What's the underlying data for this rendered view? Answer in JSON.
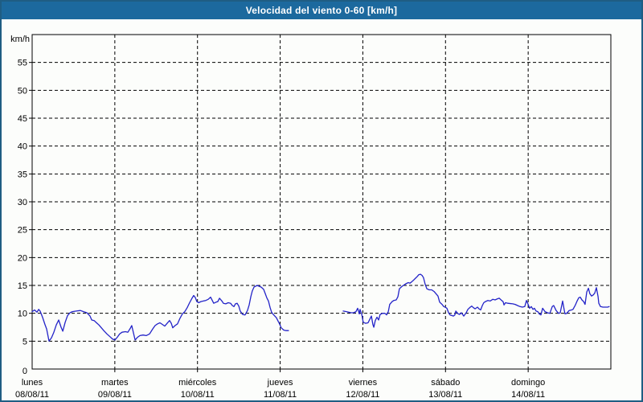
{
  "title": "Velocidad del viento 0-60 [km/h]",
  "colors": {
    "title_bar_bg": "#1c699e",
    "title_text": "#ffffff",
    "frame_border": "#1f5d83",
    "background": "#fcfdfb",
    "plot_border": "#000000",
    "grid": "#000000",
    "line": "#2323c8"
  },
  "chart_data": {
    "type": "line",
    "title": "Velocidad del viento 0-60 [km/h]",
    "ylabel": "km/h",
    "xlabel": "",
    "ylim": [
      0,
      60
    ],
    "yticks": [
      0,
      5,
      10,
      15,
      20,
      25,
      30,
      35,
      40,
      45,
      50,
      55
    ],
    "x_unit": "hours since lunes 00:00",
    "xlim": [
      0,
      168
    ],
    "xtick_step_hours": 24,
    "grid": "dashed",
    "legend_position": "none",
    "x_categories": [
      {
        "day": "lunes",
        "date": "08/08/11"
      },
      {
        "day": "martes",
        "date": "09/08/11"
      },
      {
        "day": "miércoles",
        "date": "10/08/11"
      },
      {
        "day": "jueves",
        "date": "11/08/11"
      },
      {
        "day": "viernes",
        "date": "12/08/11"
      },
      {
        "day": "sábado",
        "date": "13/08/11"
      },
      {
        "day": "domingo",
        "date": "14/08/11"
      }
    ],
    "series": [
      {
        "name": "velocidad del viento",
        "color": "#2323c8",
        "segments": [
          [
            [
              0.0,
              10.3
            ],
            [
              0.7,
              10.6
            ],
            [
              1.4,
              10.2
            ],
            [
              1.9,
              10.7
            ],
            [
              2.3,
              10.4
            ],
            [
              3.0,
              9.3
            ],
            [
              3.7,
              8.0
            ],
            [
              4.2,
              7.2
            ],
            [
              4.9,
              5.0
            ],
            [
              5.6,
              5.6
            ],
            [
              6.3,
              6.6
            ],
            [
              7.0,
              7.9
            ],
            [
              7.7,
              8.8
            ],
            [
              8.4,
              7.5
            ],
            [
              8.9,
              6.8
            ],
            [
              9.6,
              8.4
            ],
            [
              10.3,
              9.6
            ],
            [
              11.0,
              10.1
            ],
            [
              11.7,
              10.3
            ],
            [
              12.8,
              10.4
            ],
            [
              14.0,
              10.5
            ],
            [
              14.9,
              10.3
            ],
            [
              15.9,
              10.1
            ],
            [
              16.8,
              9.5
            ],
            [
              17.3,
              8.8
            ],
            [
              18.0,
              8.7
            ],
            [
              18.7,
              8.3
            ],
            [
              19.4,
              7.9
            ],
            [
              20.1,
              7.4
            ],
            [
              20.8,
              6.9
            ],
            [
              21.7,
              6.3
            ],
            [
              22.6,
              5.8
            ],
            [
              23.3,
              5.4
            ],
            [
              24.0,
              5.2
            ],
            [
              24.7,
              5.7
            ],
            [
              25.4,
              6.3
            ],
            [
              26.1,
              6.6
            ],
            [
              27.1,
              6.7
            ],
            [
              27.8,
              6.6
            ],
            [
              28.5,
              7.3
            ],
            [
              28.9,
              7.8
            ],
            [
              29.4,
              6.5
            ],
            [
              29.9,
              5.2
            ],
            [
              30.6,
              5.7
            ],
            [
              31.3,
              6.0
            ],
            [
              32.2,
              6.1
            ],
            [
              33.1,
              6.0
            ],
            [
              34.1,
              6.3
            ],
            [
              35.0,
              7.2
            ],
            [
              35.7,
              7.8
            ],
            [
              36.4,
              8.1
            ],
            [
              37.1,
              8.3
            ],
            [
              37.8,
              8.0
            ],
            [
              38.5,
              7.7
            ],
            [
              39.2,
              8.2
            ],
            [
              39.9,
              8.7
            ],
            [
              40.4,
              8.2
            ],
            [
              40.8,
              7.4
            ],
            [
              41.5,
              7.8
            ],
            [
              42.2,
              8.1
            ],
            [
              42.9,
              9.1
            ],
            [
              43.6,
              9.9
            ],
            [
              44.3,
              10.3
            ],
            [
              45.0,
              11.0
            ],
            [
              45.7,
              11.9
            ],
            [
              46.4,
              12.7
            ],
            [
              46.9,
              13.2
            ],
            [
              47.4,
              12.8
            ],
            [
              47.8,
              12.1
            ],
            [
              48.3,
              11.9
            ],
            [
              49.0,
              12.1
            ],
            [
              49.7,
              12.2
            ],
            [
              50.4,
              12.3
            ],
            [
              51.1,
              12.5
            ],
            [
              51.8,
              12.9
            ],
            [
              52.3,
              12.3
            ],
            [
              52.7,
              11.8
            ],
            [
              53.4,
              12.0
            ],
            [
              53.9,
              12.1
            ],
            [
              54.4,
              12.7
            ],
            [
              55.1,
              12.2
            ],
            [
              55.5,
              11.8
            ],
            [
              56.2,
              11.7
            ],
            [
              56.9,
              11.9
            ],
            [
              57.6,
              11.8
            ],
            [
              58.1,
              11.4
            ],
            [
              58.6,
              11.2
            ],
            [
              59.0,
              11.7
            ],
            [
              59.5,
              11.8
            ],
            [
              60.0,
              11.3
            ],
            [
              60.4,
              10.4
            ],
            [
              61.1,
              9.8
            ],
            [
              61.8,
              9.7
            ],
            [
              62.5,
              10.5
            ],
            [
              63.0,
              11.5
            ],
            [
              63.5,
              13.0
            ],
            [
              63.9,
              14.0
            ],
            [
              64.4,
              14.7
            ],
            [
              65.3,
              15.0
            ],
            [
              66.5,
              14.7
            ],
            [
              67.2,
              14.3
            ],
            [
              67.7,
              13.5
            ],
            [
              68.1,
              12.8
            ],
            [
              68.6,
              12.2
            ],
            [
              69.1,
              11.0
            ],
            [
              69.5,
              10.2
            ],
            [
              70.0,
              9.8
            ],
            [
              70.9,
              9.2
            ],
            [
              71.4,
              8.6
            ],
            [
              71.9,
              8.0
            ],
            [
              72.3,
              7.4
            ],
            [
              73.0,
              7.0
            ],
            [
              73.7,
              6.9
            ],
            [
              74.4,
              6.9
            ]
          ],
          [
            [
              90.3,
              10.4
            ],
            [
              91.2,
              10.3
            ],
            [
              92.6,
              10.1
            ],
            [
              93.3,
              10.1
            ],
            [
              94.0,
              10.3
            ],
            [
              94.5,
              10.9
            ],
            [
              95.0,
              9.9
            ],
            [
              95.2,
              10.7
            ],
            [
              95.7,
              9.8
            ],
            [
              96.1,
              8.4
            ],
            [
              96.8,
              8.2
            ],
            [
              97.5,
              8.3
            ],
            [
              98.0,
              8.9
            ],
            [
              98.5,
              9.5
            ],
            [
              98.9,
              8.0
            ],
            [
              99.2,
              7.5
            ],
            [
              99.6,
              8.7
            ],
            [
              100.1,
              9.3
            ],
            [
              100.6,
              8.8
            ],
            [
              101.0,
              9.8
            ],
            [
              101.7,
              10.0
            ],
            [
              102.4,
              10.0
            ],
            [
              102.9,
              9.7
            ],
            [
              103.4,
              10.3
            ],
            [
              103.8,
              11.6
            ],
            [
              104.5,
              12.1
            ],
            [
              105.0,
              12.3
            ],
            [
              105.7,
              12.4
            ],
            [
              106.2,
              13.0
            ],
            [
              106.6,
              14.4
            ],
            [
              107.3,
              14.8
            ],
            [
              108.0,
              15.1
            ],
            [
              108.5,
              15.3
            ],
            [
              109.2,
              15.5
            ],
            [
              109.7,
              15.4
            ],
            [
              110.1,
              15.6
            ],
            [
              110.8,
              16.0
            ],
            [
              111.3,
              16.3
            ],
            [
              111.8,
              16.6
            ],
            [
              112.2,
              16.9
            ],
            [
              112.7,
              17.0
            ],
            [
              113.2,
              16.8
            ],
            [
              113.6,
              16.4
            ],
            [
              114.1,
              15.2
            ],
            [
              114.6,
              14.4
            ],
            [
              115.3,
              14.2
            ],
            [
              116.0,
              14.2
            ],
            [
              116.7,
              13.9
            ],
            [
              117.1,
              13.6
            ],
            [
              117.8,
              13.1
            ],
            [
              118.3,
              12.0
            ],
            [
              119.0,
              11.6
            ],
            [
              119.5,
              11.2
            ],
            [
              119.9,
              11.1
            ],
            [
              120.4,
              10.9
            ],
            [
              120.9,
              10.1
            ],
            [
              121.3,
              9.7
            ],
            [
              121.8,
              9.6
            ],
            [
              122.3,
              9.5
            ],
            [
              122.7,
              9.7
            ],
            [
              123.0,
              10.4
            ],
            [
              123.7,
              9.9
            ],
            [
              124.1,
              9.8
            ],
            [
              124.6,
              10.1
            ],
            [
              125.3,
              9.5
            ],
            [
              126.0,
              10.1
            ],
            [
              126.5,
              10.7
            ],
            [
              127.2,
              11.1
            ],
            [
              127.6,
              11.3
            ],
            [
              128.1,
              11.0
            ],
            [
              128.6,
              10.8
            ],
            [
              129.3,
              11.1
            ],
            [
              129.7,
              10.8
            ],
            [
              130.2,
              10.6
            ],
            [
              130.7,
              11.4
            ],
            [
              131.1,
              11.9
            ],
            [
              131.6,
              12.1
            ],
            [
              132.3,
              12.3
            ],
            [
              133.0,
              12.2
            ],
            [
              133.7,
              12.5
            ],
            [
              134.4,
              12.4
            ],
            [
              135.1,
              12.6
            ],
            [
              135.6,
              12.7
            ],
            [
              136.3,
              12.3
            ],
            [
              136.7,
              12.1
            ],
            [
              137.0,
              11.5
            ],
            [
              137.4,
              11.9
            ],
            [
              138.1,
              11.8
            ],
            [
              139.5,
              11.7
            ],
            [
              140.2,
              11.6
            ],
            [
              140.9,
              11.4
            ],
            [
              141.6,
              11.2
            ],
            [
              142.3,
              11.1
            ],
            [
              143.0,
              11.2
            ],
            [
              143.5,
              12.3
            ],
            [
              144.0,
              11.6
            ],
            [
              144.4,
              10.9
            ],
            [
              144.9,
              11.2
            ],
            [
              145.4,
              10.7
            ],
            [
              145.8,
              10.9
            ],
            [
              146.3,
              10.4
            ],
            [
              146.8,
              10.3
            ],
            [
              147.2,
              9.9
            ],
            [
              147.7,
              9.7
            ],
            [
              148.2,
              10.9
            ],
            [
              148.9,
              10.3
            ],
            [
              149.6,
              10.1
            ],
            [
              150.3,
              10.0
            ],
            [
              151.0,
              11.2
            ],
            [
              151.4,
              11.4
            ],
            [
              152.1,
              10.5
            ],
            [
              152.8,
              10.0
            ],
            [
              153.3,
              10.1
            ],
            [
              154.0,
              12.2
            ],
            [
              154.5,
              10.5
            ],
            [
              154.7,
              9.9
            ],
            [
              155.2,
              10.0
            ],
            [
              155.9,
              10.5
            ],
            [
              156.6,
              10.6
            ],
            [
              157.0,
              10.7
            ],
            [
              157.7,
              11.5
            ],
            [
              158.2,
              12.2
            ],
            [
              158.7,
              12.8
            ],
            [
              159.1,
              12.9
            ],
            [
              159.6,
              12.4
            ],
            [
              160.1,
              12.1
            ],
            [
              160.5,
              11.6
            ],
            [
              161.0,
              13.8
            ],
            [
              161.5,
              14.5
            ],
            [
              161.9,
              13.5
            ],
            [
              162.4,
              13.1
            ],
            [
              162.9,
              13.3
            ],
            [
              163.3,
              13.6
            ],
            [
              163.8,
              14.6
            ],
            [
              164.3,
              13.0
            ],
            [
              164.5,
              11.8
            ],
            [
              165.0,
              11.2
            ],
            [
              165.7,
              11.1
            ],
            [
              167.1,
              11.1
            ],
            [
              167.5,
              11.2
            ]
          ]
        ]
      }
    ]
  }
}
